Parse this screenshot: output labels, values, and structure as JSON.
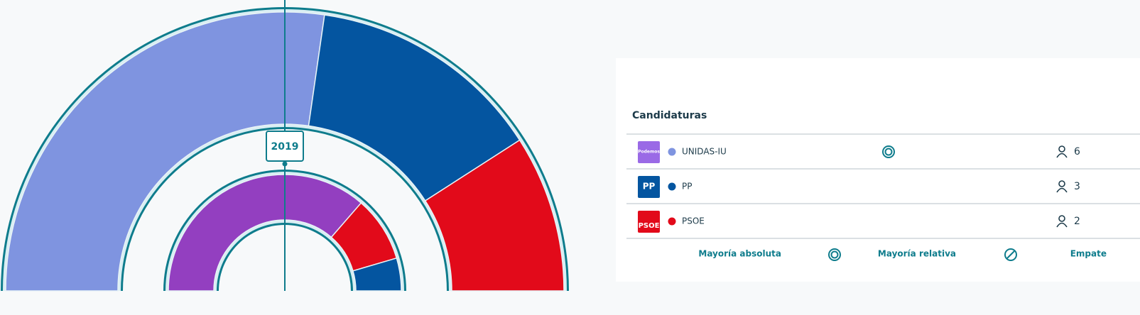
{
  "chart_data": [
    {
      "type": "parliament",
      "categories": [
        "UNIDAS-IU",
        "PP",
        "PSOE"
      ],
      "values": [
        6,
        3,
        2
      ],
      "colors": [
        "#7f94e0",
        "#0455a0",
        "#e20a1a"
      ]
    },
    {
      "type": "parliament",
      "label": "2019",
      "values": [
        8,
        2,
        1
      ],
      "colors": [
        "#933fc0",
        "#e20a1a",
        "#0455a0"
      ]
    }
  ],
  "panel": {
    "title": "Candidaturas",
    "logos": [
      "Podemos",
      "PP",
      "PSOE"
    ],
    "footer": [
      "Mayoría absoluta",
      "Mayoría relativa",
      "Empate"
    ]
  }
}
